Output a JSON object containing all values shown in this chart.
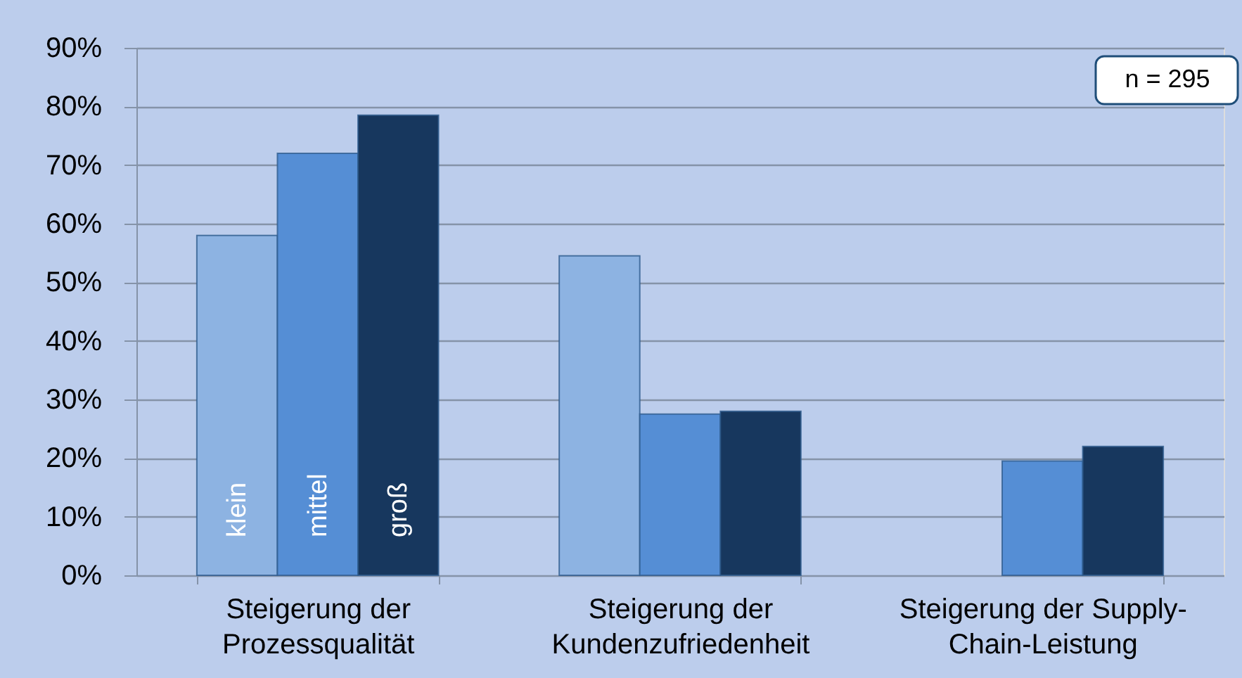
{
  "chart_data": {
    "type": "bar",
    "categories": [
      "Steigerung der Prozessqualität",
      "Steigerung der Kundenzufriedenheit",
      "Steigerung der Supply-Chain-Leistung"
    ],
    "series": [
      {
        "name": "klein",
        "color": "#8db3e2",
        "values": [
          58,
          54.5,
          null
        ]
      },
      {
        "name": "mittel",
        "color": "#558ed5",
        "values": [
          72,
          27.5,
          19.5
        ]
      },
      {
        "name": "groß",
        "color": "#17375e",
        "values": [
          78.5,
          28,
          22
        ]
      }
    ],
    "ylim": [
      0,
      90
    ],
    "yticks": [
      {
        "value": 0,
        "label": "0%"
      },
      {
        "value": 10,
        "label": "10%"
      },
      {
        "value": 20,
        "label": "20%"
      },
      {
        "value": 30,
        "label": "30%"
      },
      {
        "value": 40,
        "label": "40%"
      },
      {
        "value": 50,
        "label": "50%"
      },
      {
        "value": 60,
        "label": "60%"
      },
      {
        "value": 70,
        "label": "70%"
      },
      {
        "value": 80,
        "label": "80%"
      },
      {
        "value": 90,
        "label": "90%"
      }
    ],
    "grid": "y",
    "annotations": [
      "n = 295"
    ]
  }
}
